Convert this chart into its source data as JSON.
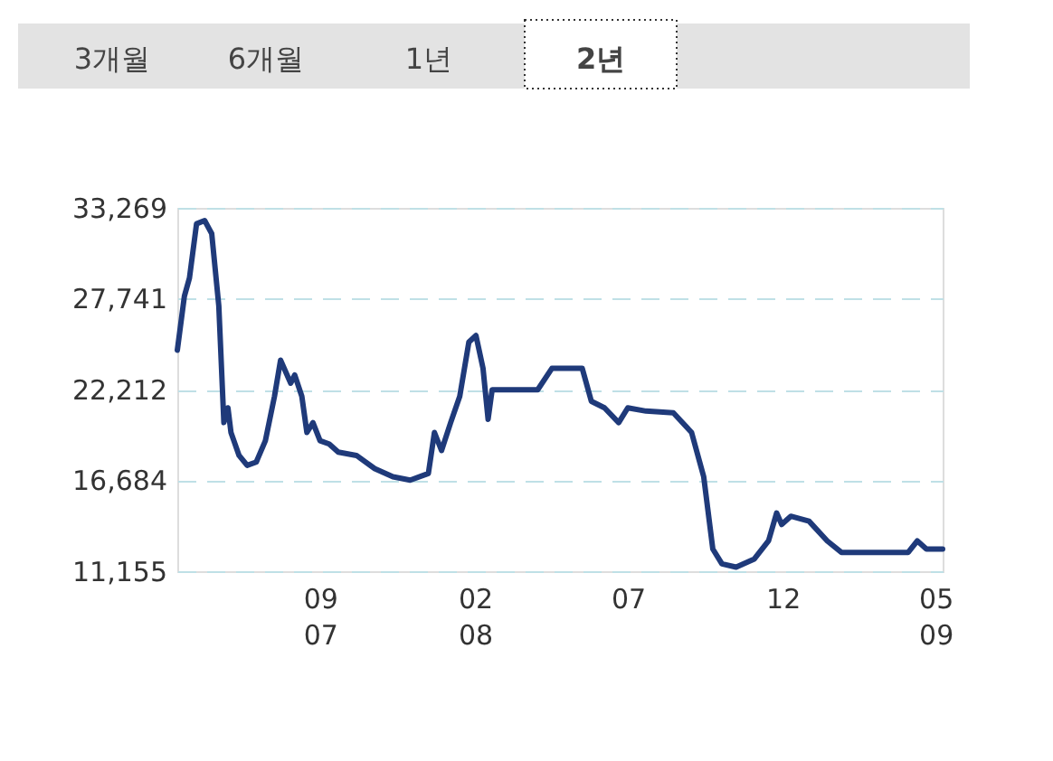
{
  "chart_data": {
    "type": "line",
    "annotations": [
      "3개월",
      "6개월",
      "1년",
      "2년"
    ],
    "x": [
      "2007-04-13",
      "2007-04-20",
      "2007-04-25",
      "2007-05-02",
      "2007-05-10",
      "2007-05-17",
      "2007-05-24",
      "2007-05-29",
      "2007-06-02",
      "2007-06-05",
      "2007-06-13",
      "2007-06-21",
      "2007-06-30",
      "2007-07-09",
      "2007-07-18",
      "2007-07-24",
      "2007-07-29",
      "2007-08-03",
      "2007-08-07",
      "2007-08-14",
      "2007-08-19",
      "2007-08-25",
      "2007-09-01",
      "2007-09-10",
      "2007-09-19",
      "2007-10-07",
      "2007-10-25",
      "2007-11-12",
      "2007-11-29",
      "2007-12-17",
      "2007-12-23",
      "2007-12-30",
      "2008-01-08",
      "2008-01-17",
      "2008-01-26",
      "2008-02-02",
      "2008-02-09",
      "2008-02-14",
      "2008-02-18",
      "2008-03-07",
      "2008-04-03",
      "2008-04-17",
      "2008-05-17",
      "2008-05-26",
      "2008-06-08",
      "2008-06-22",
      "2008-07-01",
      "2008-07-19",
      "2008-08-15",
      "2008-09-02",
      "2008-09-14",
      "2008-09-23",
      "2008-10-02",
      "2008-10-16",
      "2008-11-03",
      "2008-11-17",
      "2008-11-25",
      "2008-11-30",
      "2008-12-09",
      "2008-12-27",
      "2009-01-14",
      "2009-01-28",
      "2009-02-18",
      "2009-04-04",
      "2009-04-13",
      "2009-04-22",
      "2009-05-08"
    ],
    "series": [
      {
        "color": "#1f3a7a",
        "values": [
          24600,
          27900,
          29000,
          32300,
          32500,
          31700,
          27300,
          20200,
          21100,
          19600,
          18200,
          17600,
          17800,
          19100,
          21800,
          24000,
          23300,
          22600,
          23100,
          21800,
          19600,
          20200,
          19100,
          18900,
          18400,
          18200,
          17400,
          16900,
          16700,
          17100,
          19600,
          18500,
          20200,
          21800,
          25100,
          25500,
          23500,
          20400,
          22200,
          22200,
          22200,
          23500,
          23500,
          21500,
          21100,
          20200,
          21100,
          20900,
          20800,
          19600,
          16900,
          12500,
          11600,
          11400,
          11900,
          13000,
          14700,
          14000,
          14500,
          14200,
          13000,
          12300,
          12300,
          12300,
          13000,
          12500,
          12500
        ]
      }
    ],
    "xlim": [
      "2007-04-13",
      "2009-05-08"
    ],
    "xticks": [
      {
        "value": "2007-09-01",
        "label": "09\n07"
      },
      {
        "value": "2008-02-01",
        "label": "02\n08"
      },
      {
        "value": "2008-07-01",
        "label": "07"
      },
      {
        "value": "2008-12-01",
        "label": "12"
      },
      {
        "value": "2009-05-01",
        "label": "05\n09"
      }
    ],
    "ylim": [
      11155,
      33269
    ],
    "yticks": [
      {
        "value": 11155,
        "label": "11,155"
      },
      {
        "value": 16684,
        "label": "16,684"
      },
      {
        "value": 22212,
        "label": "22,212"
      },
      {
        "value": 27741,
        "label": "27,741"
      },
      {
        "value": 33269,
        "label": "33,269"
      }
    ],
    "grid": "y",
    "line_style": "solid"
  }
}
